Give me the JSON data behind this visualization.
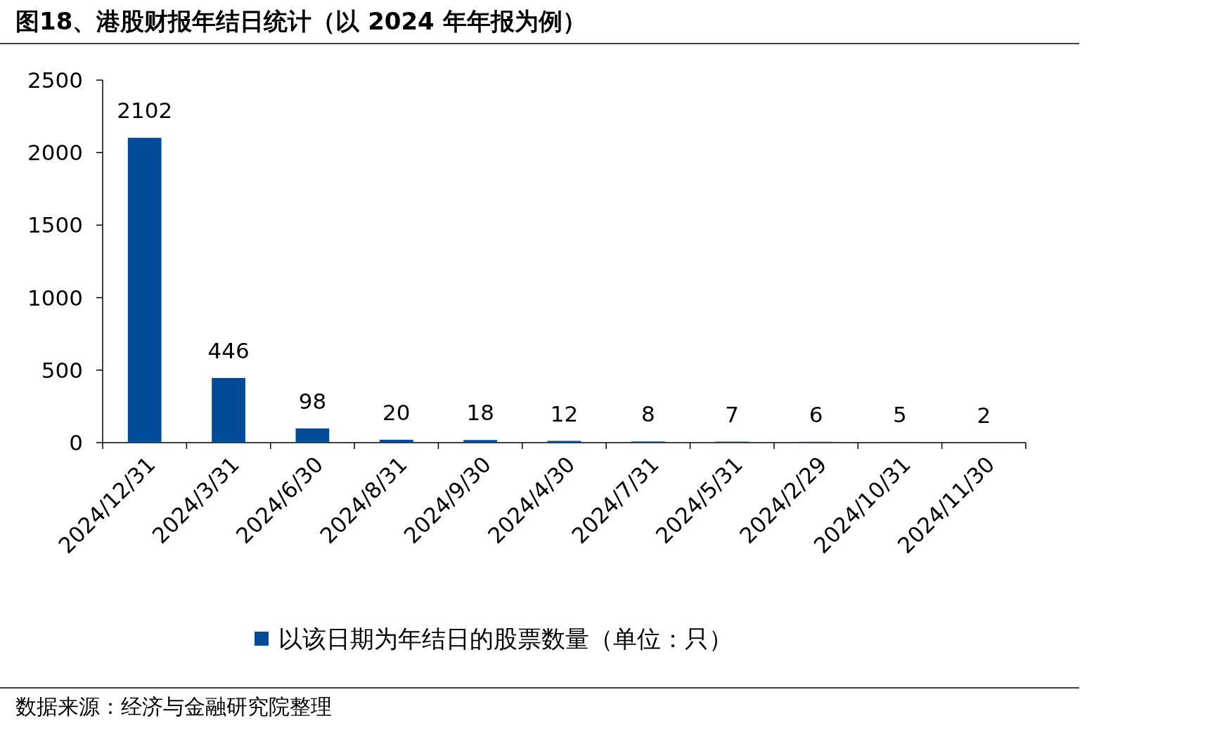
{
  "chart_data": {
    "type": "bar",
    "title": "图18、港股财报年结日统计（以 2024 年年报为例）",
    "categories": [
      "2024/12/31",
      "2024/3/31",
      "2024/6/30",
      "2024/8/31",
      "2024/9/30",
      "2024/4/30",
      "2024/7/31",
      "2024/5/31",
      "2024/2/29",
      "2024/10/31",
      "2024/11/30"
    ],
    "series": [
      {
        "name": "以该日期为年结日的股票数量（单位：只）",
        "color": "#004b97",
        "values": [
          2102,
          446,
          98,
          20,
          18,
          12,
          8,
          7,
          6,
          5,
          2
        ]
      }
    ],
    "ylim": [
      0,
      2500
    ],
    "yticks": [
      0,
      500,
      1000,
      1500,
      2000,
      2500
    ],
    "data_labels": true,
    "legend": "bottom",
    "annotations": [
      "数据来源：经济与金融研究院整理"
    ]
  }
}
